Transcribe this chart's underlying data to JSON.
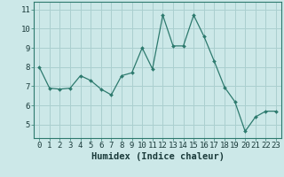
{
  "x": [
    0,
    1,
    2,
    3,
    4,
    5,
    6,
    7,
    8,
    9,
    10,
    11,
    12,
    13,
    14,
    15,
    16,
    17,
    18,
    19,
    20,
    21,
    22,
    23
  ],
  "y": [
    8.0,
    6.9,
    6.85,
    6.9,
    7.55,
    7.3,
    6.85,
    6.55,
    7.55,
    7.7,
    9.0,
    7.9,
    10.7,
    9.1,
    9.1,
    10.7,
    9.6,
    8.3,
    6.95,
    6.2,
    4.65,
    5.4,
    5.7,
    5.7
  ],
  "line_color": "#2d7a6e",
  "marker": "D",
  "marker_size": 2.0,
  "bg_color": "#cce8e8",
  "grid_color": "#aacfcf",
  "xlabel": "Humidex (Indice chaleur)",
  "xlabel_fontsize": 7.5,
  "tick_fontsize": 6.5,
  "ytick_labels": [
    "5",
    "6",
    "7",
    "8",
    "9",
    "10",
    "11"
  ],
  "ytick_values": [
    5,
    6,
    7,
    8,
    9,
    10,
    11
  ],
  "ylim": [
    4.3,
    11.4
  ],
  "xlim": [
    -0.5,
    23.5
  ],
  "xtick_values": [
    0,
    1,
    2,
    3,
    4,
    5,
    6,
    7,
    8,
    9,
    10,
    11,
    12,
    13,
    14,
    15,
    16,
    17,
    18,
    19,
    20,
    21,
    22,
    23
  ]
}
